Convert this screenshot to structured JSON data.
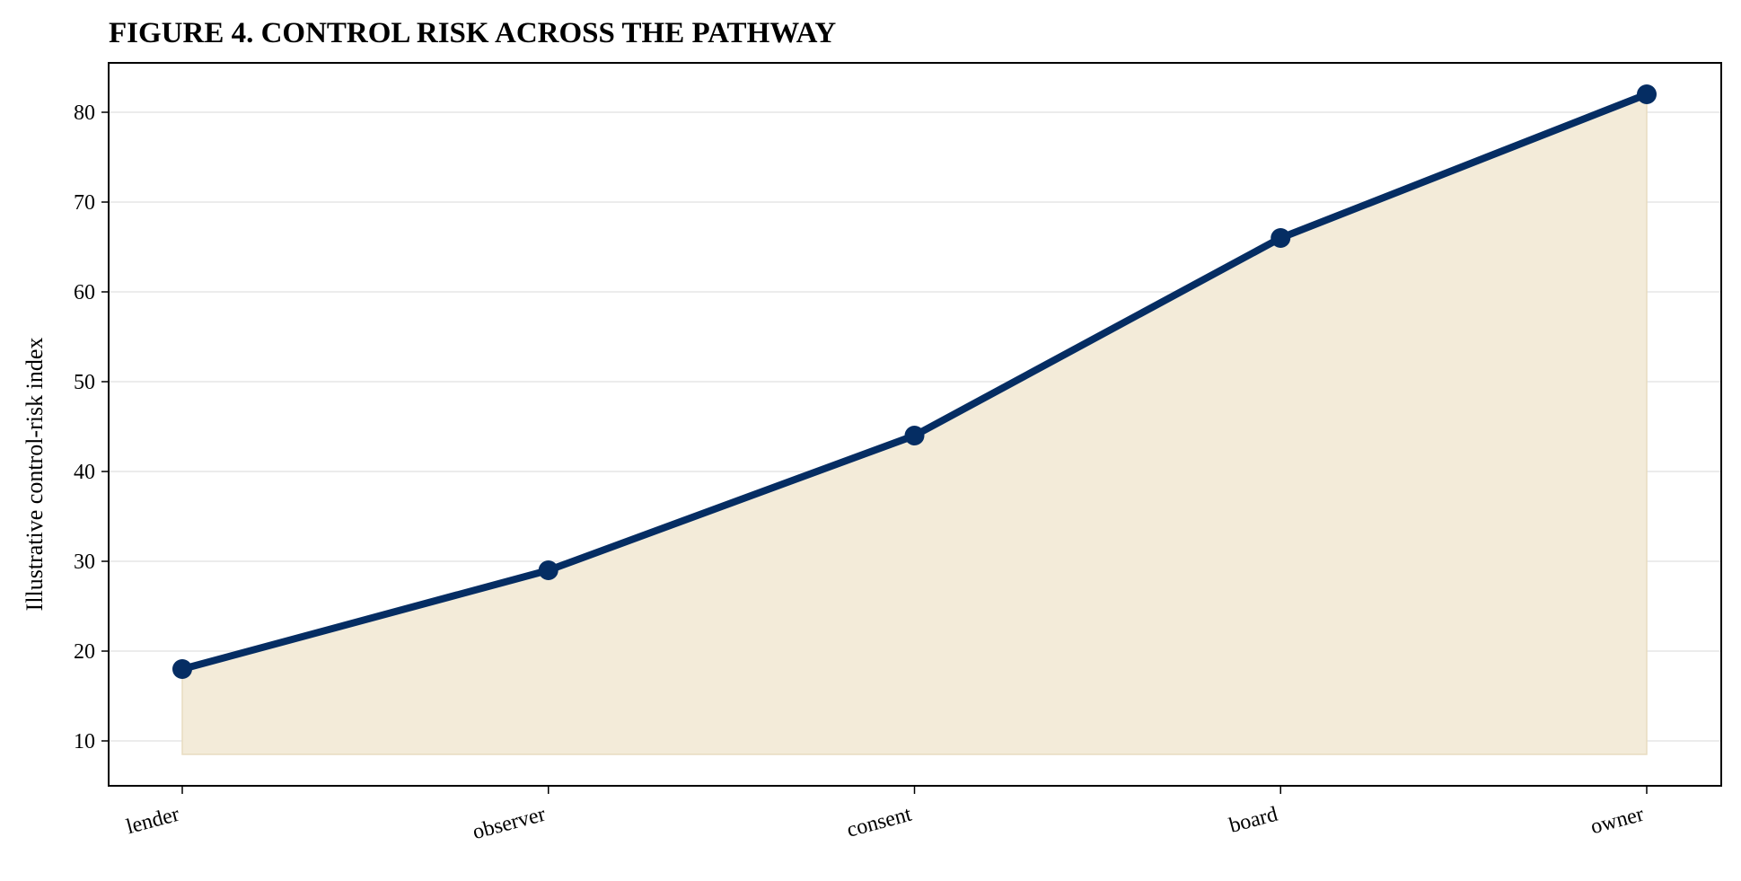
{
  "chart_data": {
    "type": "area",
    "title": "FIGURE 4. CONTROL RISK ACROSS THE PATHWAY",
    "xlabel": "",
    "ylabel": "Illustrative control-risk index",
    "categories": [
      "lender",
      "observer",
      "consent",
      "board",
      "owner"
    ],
    "series": [
      {
        "values": [
          18,
          29,
          44,
          66,
          82
        ]
      }
    ],
    "fill_baseline": 8.5,
    "ylim": [
      5,
      85.5
    ],
    "yticks": [
      10,
      20,
      30,
      40,
      50,
      60,
      70,
      80
    ],
    "grid": "horizontal",
    "legend": "none",
    "colors": {
      "line": "#052d63",
      "fill": "#f3ebd9",
      "grid": "#ececec",
      "axis": "#000000"
    }
  }
}
